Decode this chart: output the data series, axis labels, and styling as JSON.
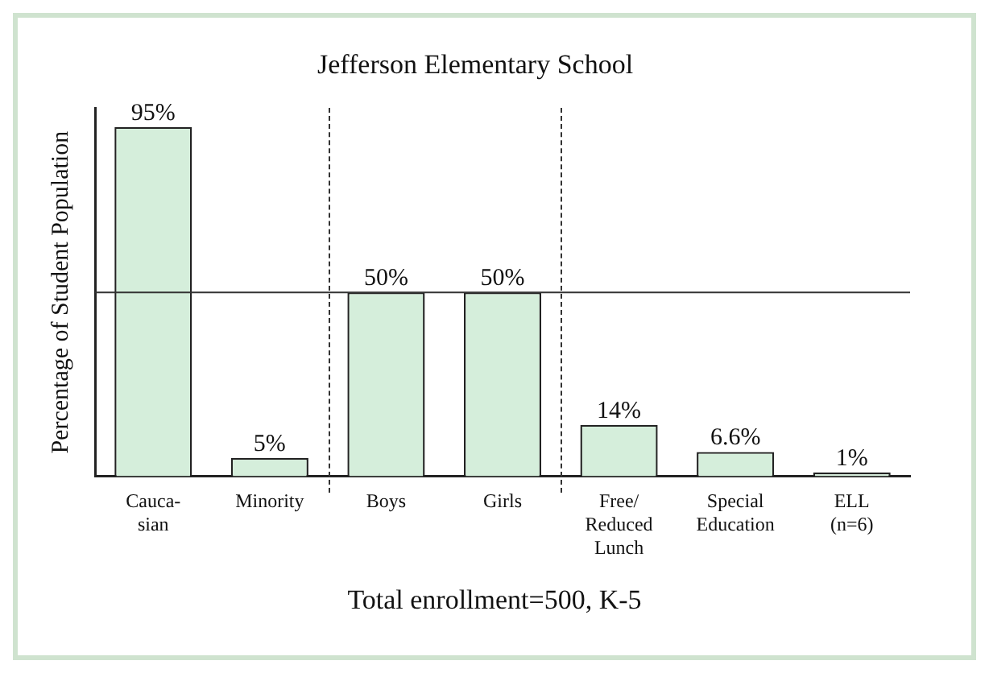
{
  "chart_data": {
    "type": "bar",
    "title": "Jefferson Elementary School",
    "ylabel": "Percentage of Student Population",
    "categories": [
      "Cauca-\nsian",
      "Minority",
      "Boys",
      "Girls",
      "Free/\nReduced\nLunch",
      "Special\nEducation",
      "ELL\n(n=6)"
    ],
    "values": [
      95,
      5,
      50,
      50,
      14,
      6.6,
      1
    ],
    "color": "#d5eedb",
    "value_labels": [
      "95%",
      "5%",
      "50%",
      "50%",
      "14%",
      "6.6%",
      "1%"
    ],
    "ref_lines": [
      {
        "axis": "y",
        "value": 50,
        "color": "#333333"
      }
    ],
    "annotations": [
      "Total enrollment=500, K-5"
    ],
    "grid": false,
    "legend": false
  }
}
